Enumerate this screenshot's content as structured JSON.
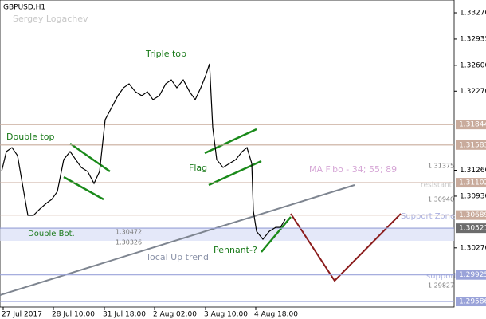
{
  "chart_data": {
    "type": "line",
    "title": "GBPUSD,H1",
    "subtitle": "Sergey Logachev",
    "annotations": {
      "triple_top": "Triple top",
      "double_top": "Double top",
      "flag": "Flag",
      "ma": "MA Fibo - 34; 55; 89",
      "resistant": "resistant",
      "support_zone": "Support Zone",
      "double_bot": "Double Bot.",
      "pennant": "Pennant-?",
      "trend": "local Up trend",
      "support": "support"
    },
    "price_notes": [
      "1.31375",
      "1.30940",
      "1.30472",
      "1.30326",
      "1.29827"
    ],
    "series": [
      {
        "name": "GBPUSD",
        "color": "#000000",
        "x": [
          1,
          4,
          7.5,
          11,
          14,
          17.5,
          21,
          25,
          29,
          32.5,
          36,
          40,
          44,
          47.5,
          51,
          55,
          59,
          62.5,
          66,
          70,
          74,
          77.5,
          81,
          85,
          89,
          92.5,
          96,
          100,
          104,
          107.5,
          111,
          115,
          119,
          122.5,
          126,
          129,
          131.5,
          133.5,
          136,
          140,
          144,
          148,
          152,
          155,
          158,
          159,
          161,
          165,
          169,
          173,
          176,
          179
        ],
        "values": [
          1.31245,
          1.31499,
          1.3155,
          1.31448,
          1.31092,
          1.30685,
          1.30685,
          1.30766,
          1.30838,
          1.30889,
          1.3099,
          1.31397,
          1.31499,
          1.31397,
          1.31296,
          1.31245,
          1.31092,
          1.31245,
          1.31906,
          1.32059,
          1.32212,
          1.32313,
          1.32364,
          1.32262,
          1.32212,
          1.32262,
          1.32161,
          1.32212,
          1.32364,
          1.32415,
          1.32313,
          1.32415,
          1.32262,
          1.32161,
          1.32313,
          1.32466,
          1.32619,
          1.31805,
          1.31397,
          1.31296,
          1.31347,
          1.31397,
          1.31499,
          1.3155,
          1.31347,
          1.3074,
          1.30481,
          1.3038,
          1.30481,
          1.30532,
          1.30532,
          1.30634
        ]
      }
    ],
    "levels": [
      1.31844,
      1.31583,
      1.31102,
      1.30689,
      1.30521,
      1.29925,
      1.29586
    ],
    "level_colors": [
      "#c9ab9c",
      "#c9ab9c",
      "#c9ab9c",
      "#c9ab9c",
      "#9aa3d9",
      "#9aa3d9",
      "#9aa3d9"
    ],
    "ylim": [
      1.29515,
      1.33433
    ],
    "yticks": [
      {
        "value": 1.3327,
        "label": "1.33270"
      },
      {
        "value": 1.32935,
        "label": "1.32935"
      },
      {
        "value": 1.326,
        "label": "1.32600"
      },
      {
        "value": 1.3227,
        "label": "1.32270"
      },
      {
        "value": 1.3126,
        "label": "1.31260"
      },
      {
        "value": 1.3093,
        "label": "1.30930"
      },
      {
        "value": 1.3027,
        "label": "1.30270"
      }
    ],
    "xlim": [
      0,
      285
    ],
    "xticks": [
      {
        "value": 2,
        "label": "27 Jul 2017"
      },
      {
        "value": 33.5,
        "label": "28 Jul 10:00"
      },
      {
        "value": 65.5,
        "label": "31 Jul 18:00"
      },
      {
        "value": 97,
        "label": "2 Aug 02:00"
      },
      {
        "value": 129,
        "label": "3 Aug 10:00"
      },
      {
        "value": 160.5,
        "label": "4 Aug 18:00"
      }
    ]
  }
}
